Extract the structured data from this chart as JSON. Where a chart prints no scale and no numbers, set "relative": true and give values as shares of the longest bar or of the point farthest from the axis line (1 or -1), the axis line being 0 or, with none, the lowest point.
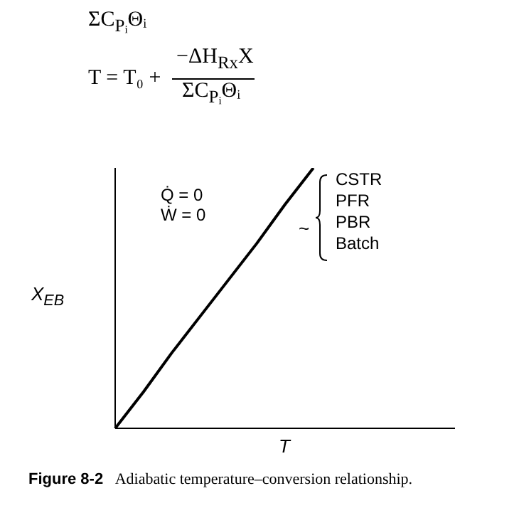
{
  "chart_data": {
    "type": "line",
    "relative": true,
    "xlabel": "T",
    "ylabel": "X$_{EB}$",
    "categories": [
      null,
      null,
      null,
      null,
      null,
      null,
      null,
      null,
      null,
      null,
      null,
      null,
      null
    ],
    "series": [
      {
        "color": "#000000",
        "values": [
          0,
          0.14,
          0.29,
          0.43,
          0.57,
          0.71,
          0.86,
          1,
          null,
          null,
          null,
          null,
          null
        ]
      }
    ],
    "marker": "none",
    "line_style": "solid",
    "annotations": [
      "ΣC$_{Pᵢ}$Θᵢ",
      "T = T₀ +",
      "−ΔH$_{Rx}$X",
      "ΣC$_{Pᵢ}$Θᵢ",
      "Q̇ = 0",
      "Ẇ = 0",
      "~",
      "CSTR",
      "PFR",
      "PBR",
      "Batch",
      "Figure 8-2",
      "Adiabatic temperature–conversion relationship."
    ]
  }
}
